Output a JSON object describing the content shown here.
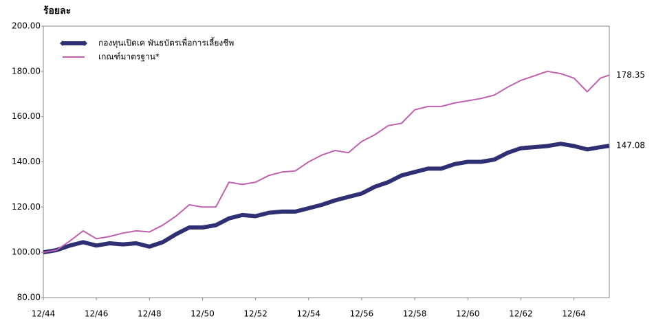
{
  "chart_data": {
    "type": "line",
    "y_axis_label": "ร้อยละ",
    "x": [
      "12/44",
      "6/45",
      "12/45",
      "6/46",
      "12/46",
      "6/47",
      "12/47",
      "6/48",
      "12/48",
      "6/49",
      "12/49",
      "6/50",
      "12/50",
      "6/51",
      "12/51",
      "6/52",
      "12/52",
      "6/53",
      "12/53",
      "6/54",
      "12/54",
      "6/55",
      "12/55",
      "6/56",
      "12/56",
      "6/57",
      "12/57",
      "6/58",
      "12/58",
      "6/59",
      "12/59",
      "6/60",
      "12/60",
      "6/61",
      "12/61",
      "6/62",
      "12/62",
      "6/63",
      "12/63",
      "6/64",
      "12/64",
      "6/65",
      "12/65",
      "4/66"
    ],
    "xlim": [
      "12/44",
      "4/66"
    ],
    "xticks": [
      "12/44",
      "12/46",
      "12/48",
      "12/50",
      "12/52",
      "12/54",
      "12/56",
      "12/58",
      "12/60",
      "12/62",
      "12/64"
    ],
    "ylim": [
      80,
      200
    ],
    "yticks": [
      {
        "value": 80,
        "label": "80.00"
      },
      {
        "value": 100,
        "label": "100.00"
      },
      {
        "value": 120,
        "label": "120.00"
      },
      {
        "value": 140,
        "label": "140.00"
      },
      {
        "value": 160,
        "label": "160.00"
      },
      {
        "value": 180,
        "label": "180.00"
      },
      {
        "value": 200,
        "label": "200.00"
      }
    ],
    "grid": false,
    "legend": "top-left",
    "series": [
      {
        "name": "กองทุนเปิดเค พันธบัตรเพื่อการเลี้ยงชีพ",
        "color": "#2e3073",
        "values": [
          100,
          101,
          103,
          104.5,
          103,
          104,
          103.5,
          104,
          102.5,
          104.5,
          108,
          111,
          111,
          112,
          115,
          116.5,
          116,
          117.5,
          118,
          118,
          119.5,
          121,
          123,
          124.5,
          126,
          129,
          131,
          134,
          135.5,
          137,
          137,
          139,
          140,
          140,
          141,
          144,
          146,
          146.5,
          147,
          148,
          147,
          145.5,
          146.5,
          147.08
        ]
      },
      {
        "name": "เกณฑ์มาตรฐาน*",
        "color": "#c060b0",
        "values": [
          100,
          101,
          105,
          109.5,
          106,
          107,
          108.5,
          109.5,
          109,
          112,
          116,
          121,
          120,
          120,
          131,
          130,
          131,
          134,
          135.5,
          136,
          140,
          143,
          145,
          144,
          149,
          152,
          156,
          157,
          163,
          164.5,
          164.5,
          166,
          167,
          168,
          169.5,
          173,
          176,
          178,
          180,
          179,
          177,
          171,
          177,
          178.35
        ]
      }
    ]
  }
}
